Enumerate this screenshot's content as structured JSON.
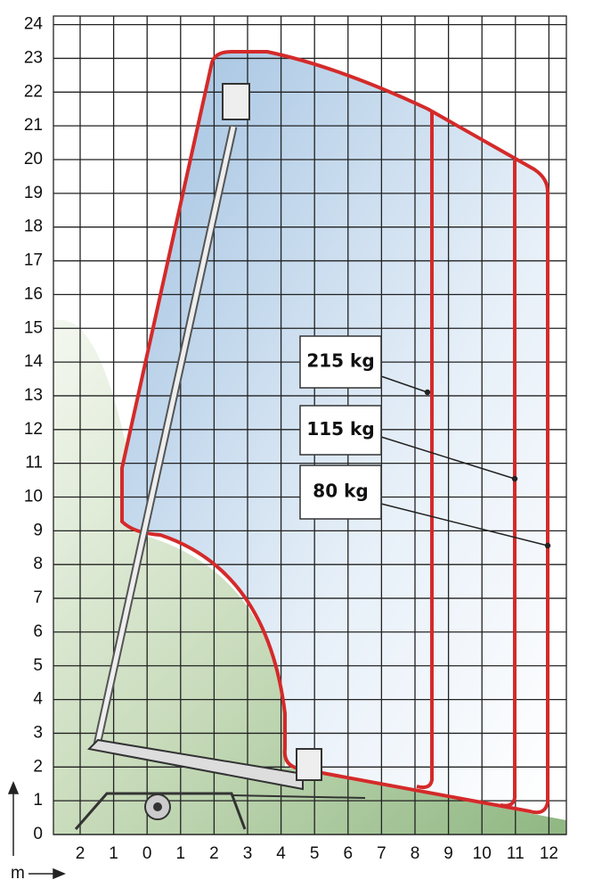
{
  "y_axis": {
    "labels": [
      "0",
      "1",
      "2",
      "3",
      "4",
      "5",
      "6",
      "7",
      "8",
      "9",
      "10",
      "11",
      "12",
      "13",
      "14",
      "15",
      "16",
      "17",
      "18",
      "19",
      "20",
      "21",
      "22",
      "23",
      "24"
    ]
  },
  "x_axis": {
    "labels": [
      "2",
      "1",
      "0",
      "1",
      "2",
      "3",
      "4",
      "5",
      "6",
      "7",
      "8",
      "9",
      "10",
      "11",
      "12"
    ]
  },
  "unit": "m",
  "loads": [
    "215 kg",
    "115 kg",
    "80 kg"
  ]
}
